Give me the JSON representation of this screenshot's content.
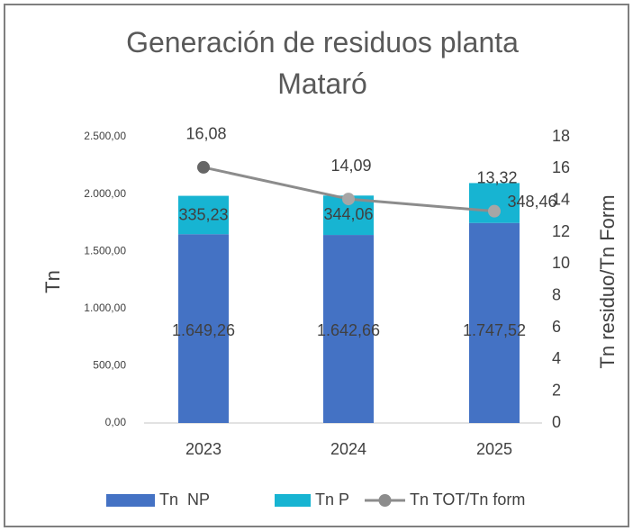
{
  "chart_data": {
    "type": "bar",
    "stacked": true,
    "title": "Generación de residuos planta Mataró",
    "ylabel": "Tn",
    "y2label": "Tn residuo/Tn Form",
    "categories": [
      "2023",
      "2024",
      "2025"
    ],
    "series": [
      {
        "name": "Tn  NP",
        "color": "#4472c4",
        "values": [
          1649.26,
          1642.66,
          1747.52
        ],
        "value_labels": [
          "1.649,26",
          "1.642,66",
          "1.747,52"
        ]
      },
      {
        "name": "Tn P",
        "color": "#17b4d2",
        "values": [
          335.23,
          344.06,
          348.46
        ],
        "value_labels": [
          "335,23",
          "344,06",
          "348,46"
        ]
      },
      {
        "name": "Tn TOT/Tn form",
        "type": "line",
        "axis": "y2",
        "color": "#8c8c8c",
        "values": [
          16.08,
          14.09,
          13.32
        ],
        "value_labels": [
          "16,08",
          "14,09",
          "13,32"
        ]
      }
    ],
    "ylim": [
      0,
      2500
    ],
    "yticks": [
      {
        "value": 0,
        "label": "0,00"
      },
      {
        "value": 500,
        "label": "500,00"
      },
      {
        "value": 1000,
        "label": "1.000,00"
      },
      {
        "value": 1500,
        "label": "1.500,00"
      },
      {
        "value": 2000,
        "label": "2.000,00"
      },
      {
        "value": 2500,
        "label": "2.500,00"
      }
    ],
    "y2lim": [
      0,
      18
    ],
    "y2ticks": [
      0,
      2,
      4,
      6,
      8,
      10,
      12,
      14,
      16,
      18
    ],
    "legend": "bottom"
  }
}
